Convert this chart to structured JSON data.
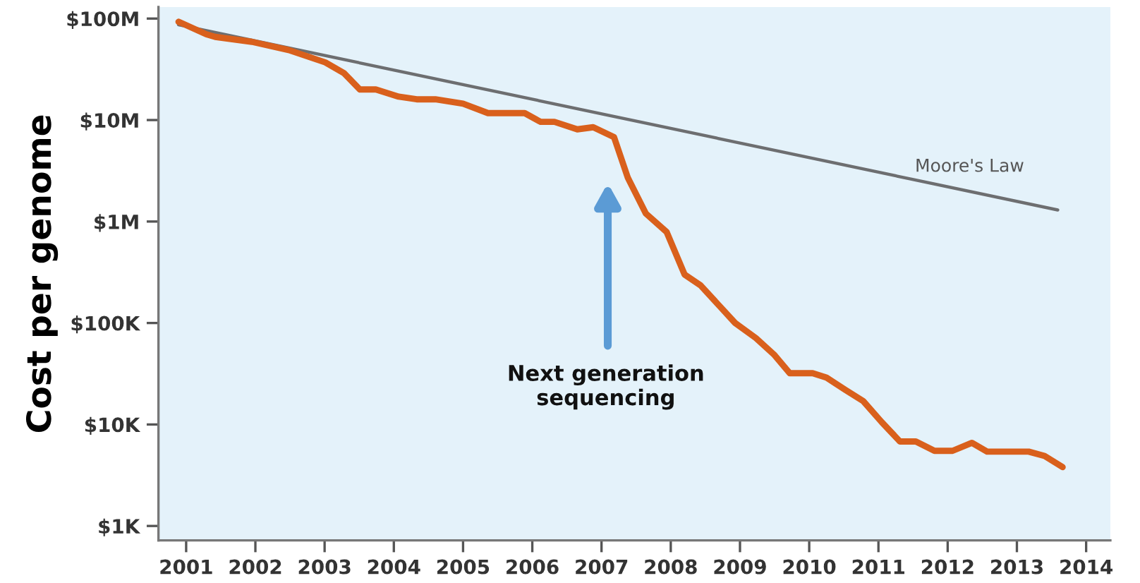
{
  "chart_data": {
    "type": "line",
    "ylabel": "Cost per genome",
    "log": "y",
    "grid": false,
    "legend": false,
    "marker": "none",
    "line_style": "solid",
    "xlim": [
      2000.6,
      2014.35
    ],
    "xticks": [
      2001,
      2002,
      2003,
      2004,
      2005,
      2006,
      2007,
      2008,
      2009,
      2010,
      2011,
      2012,
      2013,
      2014
    ],
    "ylim": [
      720,
      130000000
    ],
    "yticks": [
      {
        "value": 1000,
        "label": "$1K"
      },
      {
        "value": 10000,
        "label": "$10K"
      },
      {
        "value": 100000,
        "label": "$100K"
      },
      {
        "value": 1000000,
        "label": "$1M"
      },
      {
        "value": 10000000,
        "label": "$10M"
      },
      {
        "value": 100000000,
        "label": "$100M"
      }
    ],
    "series": [
      {
        "name": "Moore's Law",
        "color": "#6d6e70",
        "x": [
          2000.89,
          2013.59
        ],
        "values": [
          87000000,
          1300000
        ]
      },
      {
        "color": "#d9601c",
        "x": [
          2000.89,
          2001.29,
          2001.42,
          2001.95,
          2002.48,
          2003.01,
          2003.28,
          2003.51,
          2003.74,
          2004.07,
          2004.33,
          2004.6,
          2005.0,
          2005.36,
          2005.89,
          2006.12,
          2006.32,
          2006.65,
          2006.88,
          2007.18,
          2007.38,
          2007.64,
          2007.94,
          2008.2,
          2008.43,
          2008.93,
          2009.23,
          2009.49,
          2009.72,
          2010.05,
          2010.25,
          2010.52,
          2010.78,
          2011.05,
          2011.31,
          2011.54,
          2011.81,
          2012.07,
          2012.35,
          2012.57,
          2013.17,
          2013.4,
          2013.66
        ],
        "values": [
          93000000,
          70000000,
          66000000,
          59000000,
          49000000,
          37000000,
          29000000,
          20000000,
          20000000,
          17000000,
          16000000,
          16000000,
          14500000,
          11700000,
          11700000,
          9600000,
          9600000,
          8100000,
          8500000,
          6800000,
          2700000,
          1200000,
          790000,
          300000,
          235000,
          100000,
          71000,
          49000,
          32000,
          32000,
          29000,
          22000,
          17000,
          10500,
          6800,
          6800,
          5500,
          5500,
          6600,
          5400,
          5400,
          4900,
          3800
        ]
      }
    ],
    "annotations": [
      "Next generation\nsequencing"
    ]
  }
}
